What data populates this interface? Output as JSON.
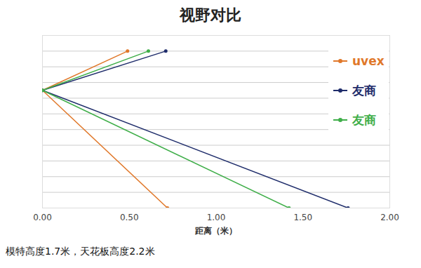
{
  "chart_data": {
    "type": "line",
    "title": "视野对比",
    "xlabel": "距离（米）",
    "caption": "模特高度1.7米，天花板高度2.2米",
    "xlim": [
      0,
      2
    ],
    "xticks": [
      {
        "value": 0,
        "label": "0.00"
      },
      {
        "value": 0.5,
        "label": "0.50"
      },
      {
        "value": 1,
        "label": "1.00"
      },
      {
        "value": 1.5,
        "label": "1.50"
      },
      {
        "value": 2,
        "label": "2.00"
      }
    ],
    "ylim": [
      0,
      2.2
    ],
    "yticks": [
      0,
      0.2,
      0.4,
      0.6,
      0.8,
      1,
      1.2,
      1.4,
      1.6,
      1.8,
      2,
      2.2
    ],
    "grid": true,
    "tick_labels": "x",
    "legend": "top-right",
    "series": [
      {
        "name": "uvex",
        "color": "#e0782a",
        "marker": "circle",
        "x": [
          0.49,
          0,
          0.72
        ],
        "values": [
          2.0,
          1.5,
          0
        ]
      },
      {
        "name": "友商",
        "color": "#1f2d6b",
        "marker": "circle",
        "x": [
          0.71,
          0,
          1.76
        ],
        "values": [
          2.0,
          1.5,
          0
        ]
      },
      {
        "name": "友商",
        "color": "#3fae49",
        "marker": "circle",
        "x": [
          0.61,
          0,
          1.42
        ],
        "values": [
          2.0,
          1.5,
          0
        ]
      }
    ]
  }
}
